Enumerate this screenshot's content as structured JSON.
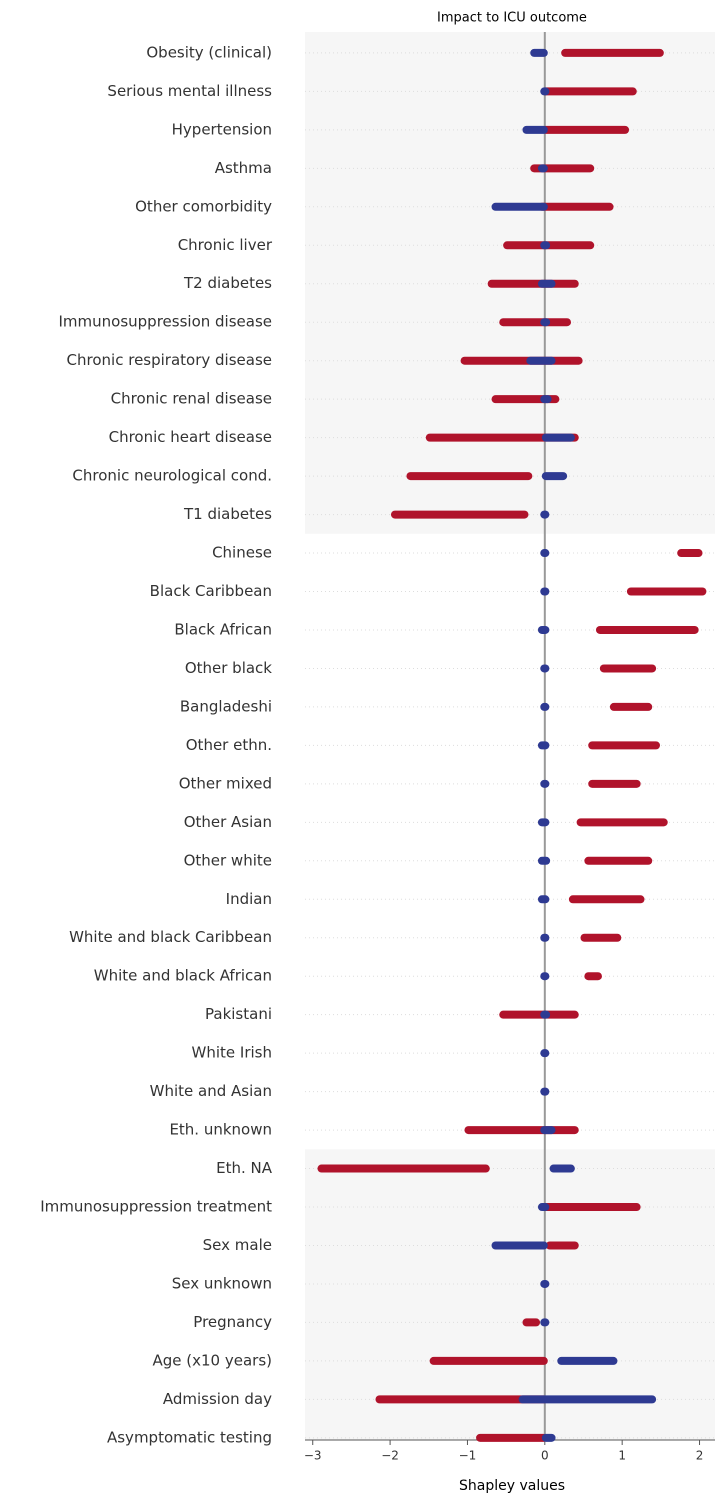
{
  "chart_data": {
    "type": "beeswarm",
    "title": "Impact to ICU outcome",
    "x_label": "Shapley values",
    "categories": [
      "Obesity (clinical)",
      "Serious mental illness",
      "Hypertension",
      "Asthma",
      "Other comorbidity",
      "Chronic liver",
      "T2 diabetes",
      "Immunosuppression disease",
      "Chronic respiratory disease",
      "Chronic renal disease",
      "Chronic heart disease",
      "Chronic neurological cond.",
      "T1 diabetes",
      "Chinese",
      "Black Caribbean",
      "Black African",
      "Other black",
      "Bangladeshi",
      "Other ethn.",
      "Other mixed",
      "Other Asian",
      "Other white",
      "Indian",
      "White and black Caribbean",
      "White and black African",
      "Pakistani",
      "White Irish",
      "White and Asian",
      "Eth. unknown",
      "Eth. NA",
      "Immunosuppression treatment",
      "Sex male",
      "Sex unknown",
      "Pregnancy",
      "Age (x10 years)",
      "Admission day",
      "Asymptomatic testing"
    ],
    "series": [
      {
        "color": "#b0132b",
        "values": [
          [
            0.25,
            1.5
          ],
          [
            0,
            1.15
          ],
          [
            0,
            1.05
          ],
          [
            -0.15,
            0.6
          ],
          [
            -0.05,
            0.85
          ],
          [
            -0.5,
            0.6
          ],
          [
            -0.7,
            0.4
          ],
          [
            -0.55,
            0.3
          ],
          [
            -1.05,
            0.45
          ],
          [
            -0.65,
            0.15
          ],
          [
            -1.5,
            0.4
          ],
          [
            -1.75,
            -0.2
          ],
          [
            -1.95,
            -0.25
          ],
          [
            1.75,
            2.0
          ],
          [
            1.1,
            2.05
          ],
          [
            0.7,
            1.95
          ],
          [
            0.75,
            1.4
          ],
          [
            0.88,
            1.35
          ],
          [
            0.6,
            1.45
          ],
          [
            0.6,
            1.2
          ],
          [
            0.45,
            1.55
          ],
          [
            0.55,
            1.35
          ],
          [
            0.35,
            1.25
          ],
          [
            0.5,
            0.95
          ],
          [
            0.55,
            0.7
          ],
          [
            -0.55,
            0.4
          ],
          null,
          null,
          [
            -1.0,
            0.4
          ],
          [
            -2.9,
            -0.75
          ],
          [
            0,
            1.2
          ],
          [
            0.05,
            0.4
          ],
          null,
          [
            -0.25,
            -0.1
          ],
          [
            -1.45,
            0.0
          ],
          [
            -2.15,
            0.0
          ],
          [
            -0.85,
            0.0
          ]
        ]
      },
      {
        "color": "#2e3a92",
        "values": [
          [
            -0.15,
            0.0
          ],
          [
            -0.02,
            0.02
          ],
          [
            -0.25,
            0.0
          ],
          [
            -0.05,
            0.0
          ],
          [
            -0.65,
            0.0
          ],
          [
            -0.02,
            0.03
          ],
          [
            -0.05,
            0.1
          ],
          [
            -0.02,
            0.03
          ],
          [
            -0.2,
            0.1
          ],
          [
            -0.02,
            0.05
          ],
          [
            0,
            0.35
          ],
          [
            0,
            0.25
          ],
          [
            -0.02,
            0.02
          ],
          [
            -0.02,
            0.02
          ],
          [
            -0.02,
            0.02
          ],
          [
            -0.05,
            0.02
          ],
          [
            -0.02,
            0.02
          ],
          [
            -0.02,
            0.02
          ],
          [
            -0.05,
            0.02
          ],
          [
            -0.02,
            0.02
          ],
          [
            -0.05,
            0.02
          ],
          [
            -0.05,
            0.03
          ],
          [
            -0.05,
            0.02
          ],
          [
            -0.02,
            0.02
          ],
          [
            -0.02,
            0.02
          ],
          [
            -0.02,
            0.03
          ],
          [
            -0.02,
            0.02
          ],
          [
            -0.02,
            0.02
          ],
          [
            -0.02,
            0.1
          ],
          [
            0.1,
            0.35
          ],
          [
            -0.05,
            0.02
          ],
          [
            -0.65,
            0.0
          ],
          [
            -0.02,
            0.02
          ],
          [
            -0.02,
            0.02
          ],
          [
            0.2,
            0.9
          ],
          [
            -0.3,
            1.4
          ],
          [
            0,
            0.1
          ]
        ]
      }
    ],
    "xlim": [
      -3.1,
      2.2
    ],
    "xticks": [
      {
        "value": -3,
        "label": "−3"
      },
      {
        "value": -2,
        "label": "−2"
      },
      {
        "value": -1,
        "label": "−1"
      },
      0,
      1,
      2
    ]
  }
}
